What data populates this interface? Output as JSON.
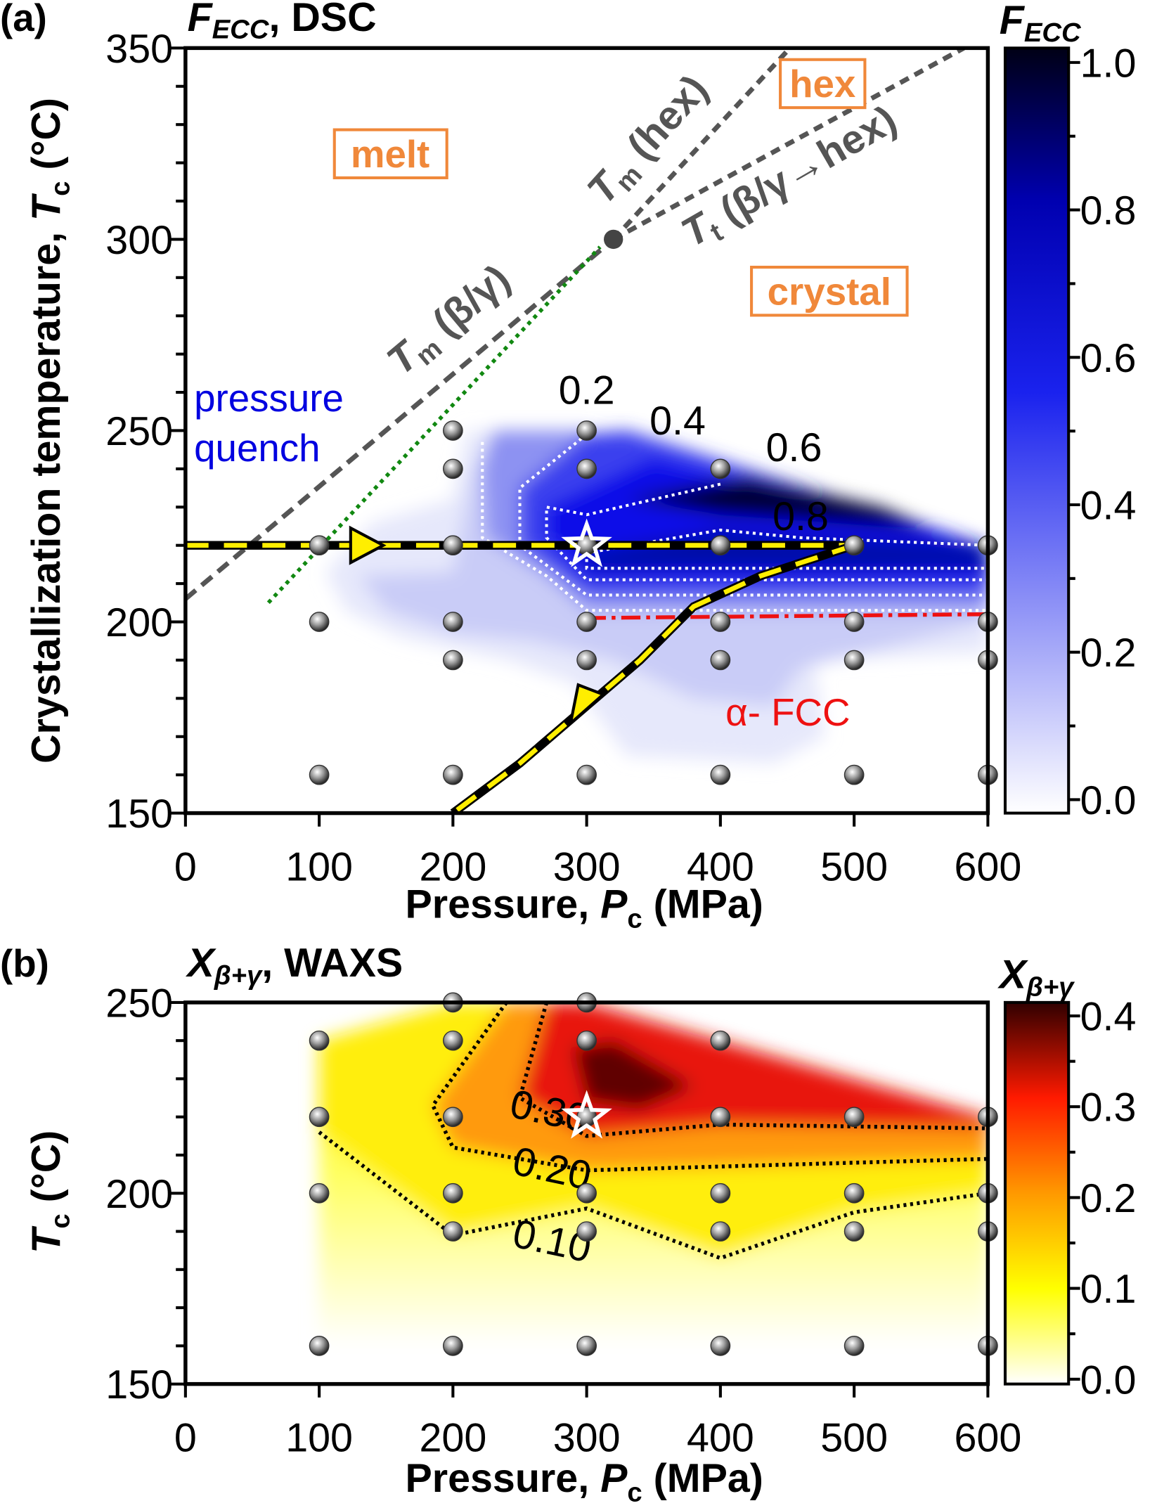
{
  "chart_data": [
    {
      "panel": "(a)",
      "type": "heatmap",
      "title": {
        "main": "F",
        "sub": "ECC",
        "rest": ", DSC"
      },
      "xlabel": {
        "main": "Pressure, ",
        "ital": "P",
        "sub": "c",
        "rest": " (MPa)"
      },
      "ylabel": {
        "main": "Crystallization temperature, ",
        "ital": "T",
        "sub": "c",
        "rest": " (°C)"
      },
      "xlim": [
        0,
        600
      ],
      "ylim": [
        150,
        350
      ],
      "xticks": [
        "0",
        "100",
        "200",
        "300",
        "400",
        "500",
        "600"
      ],
      "yticks": [
        "150",
        "200",
        "250",
        "300",
        "350"
      ],
      "colorbar": {
        "title_main": "F",
        "title_sub": "ECC",
        "range": [
          0,
          1
        ],
        "ticks": [
          "0.0",
          "0.2",
          "0.4",
          "0.6",
          "0.8",
          "1.0"
        ],
        "colors": [
          "#ffffff",
          "#0000ee",
          "#000020"
        ]
      },
      "points": [
        [
          100,
          220
        ],
        [
          100,
          200
        ],
        [
          100,
          160
        ],
        [
          200,
          250
        ],
        [
          200,
          240
        ],
        [
          200,
          220
        ],
        [
          200,
          200
        ],
        [
          200,
          190
        ],
        [
          200,
          160
        ],
        [
          300,
          250
        ],
        [
          300,
          240
        ],
        [
          300,
          220
        ],
        [
          300,
          200
        ],
        [
          300,
          190
        ],
        [
          300,
          160
        ],
        [
          400,
          240
        ],
        [
          400,
          220
        ],
        [
          400,
          200
        ],
        [
          400,
          190
        ],
        [
          400,
          160
        ],
        [
          500,
          220
        ],
        [
          500,
          200
        ],
        [
          500,
          190
        ],
        [
          500,
          160
        ],
        [
          600,
          220
        ],
        [
          600,
          200
        ],
        [
          600,
          190
        ],
        [
          600,
          160
        ]
      ],
      "star": [
        300,
        220
      ],
      "filled_levels": [
        {
          "level": 0.05,
          "color": "#e6e8fb",
          "poly": [
            [
              105,
              213
            ],
            [
              140,
              226
            ],
            [
              200,
              232
            ],
            [
              210,
              250
            ],
            [
              300,
              250
            ],
            [
              600,
              220
            ],
            [
              600,
              192
            ],
            [
              470,
              190
            ],
            [
              478,
              170
            ],
            [
              440,
              163
            ],
            [
              330,
              165
            ],
            [
              290,
              184
            ],
            [
              240,
              190
            ],
            [
              160,
              196
            ],
            [
              120,
              203
            ]
          ]
        },
        {
          "level": 0.12,
          "color": "#c9ccf7",
          "poly": [
            [
              130,
              212
            ],
            [
              200,
              213
            ],
            [
              215,
              240
            ],
            [
              230,
              250
            ],
            [
              300,
              250
            ],
            [
              600,
              220
            ],
            [
              600,
              200
            ],
            [
              460,
              188
            ],
            [
              440,
              178
            ],
            [
              380,
              180
            ],
            [
              320,
              190
            ],
            [
              260,
              195
            ],
            [
              200,
              197
            ],
            [
              150,
              203
            ]
          ]
        },
        {
          "level": 0.2,
          "color": "#8d92f2",
          "poly": [
            [
              222,
              240
            ],
            [
              230,
              250
            ],
            [
              300,
              250
            ],
            [
              600,
              220
            ],
            [
              600,
              203
            ],
            [
              300,
              203
            ],
            [
              270,
              212
            ],
            [
              225,
              222
            ]
          ]
        },
        {
          "level": 0.4,
          "color": "#3a40ee",
          "poly": [
            [
              250,
              235
            ],
            [
              300,
              249
            ],
            [
              330,
              250
            ],
            [
              600,
              220
            ],
            [
              600,
              207
            ],
            [
              300,
              207
            ],
            [
              250,
              220
            ]
          ]
        },
        {
          "level": 0.6,
          "color": "#0a10e8",
          "poly": [
            [
              270,
              230
            ],
            [
              350,
              243
            ],
            [
              600,
              220
            ],
            [
              600,
              211
            ],
            [
              300,
              211
            ],
            [
              270,
              222
            ]
          ]
        },
        {
          "level": 0.8,
          "color": "#0508a8",
          "poly": [
            [
              300,
              218
            ],
            [
              400,
              224
            ],
            [
              460,
              222
            ],
            [
              600,
              220
            ],
            [
              600,
              214
            ],
            [
              300,
              214
            ]
          ]
        },
        {
          "level": 0.9,
          "color": "#03063a",
          "poly": [
            [
              330,
              232
            ],
            [
              420,
              238
            ],
            [
              520,
              230
            ],
            [
              560,
              224
            ],
            [
              480,
              226
            ],
            [
              400,
              228
            ]
          ]
        }
      ],
      "contours": [
        {
          "label": "0.2",
          "line": [
            [
              222,
              247
            ],
            [
              222,
              222
            ],
            [
              270,
              212
            ],
            [
              300,
              203
            ],
            [
              600,
              203
            ]
          ],
          "label_at": [
            300,
            257
          ],
          "label_color": "#000"
        },
        {
          "label": "0.4",
          "line": [
            [
              300,
              249
            ],
            [
              250,
              235
            ],
            [
              250,
              220
            ],
            [
              300,
              207
            ],
            [
              600,
              207
            ]
          ],
          "label_at": [
            368,
            249
          ],
          "label_color": "#000"
        },
        {
          "label": "0.6",
          "line": [
            [
              400,
              236
            ],
            [
              300,
              228
            ],
            [
              270,
              230
            ],
            [
              270,
              222
            ],
            [
              300,
              211
            ],
            [
              600,
              211
            ]
          ],
          "label_at": [
            455,
            242
          ],
          "label_color": "#000"
        },
        {
          "label": "0.8",
          "line": [
            [
              300,
              218
            ],
            [
              400,
              224
            ],
            [
              460,
              222
            ],
            [
              600,
              220
            ],
            [
              600,
              214
            ],
            [
              300,
              214
            ],
            [
              300,
              218
            ]
          ],
          "label_at": [
            460,
            224
          ],
          "label_color": "#fff"
        }
      ],
      "lines": {
        "tm_beta_gamma": [
          [
            0,
            206
          ],
          [
            320,
            300
          ]
        ],
        "tm_hex": [
          [
            320,
            300
          ],
          [
            452,
            350
          ]
        ],
        "tt": [
          [
            320,
            300
          ],
          [
            582,
            350
          ]
        ],
        "green": [
          [
            62,
            205
          ],
          [
            310,
            298
          ]
        ],
        "red": [
          [
            300,
            201
          ],
          [
            600,
            202
          ]
        ],
        "path_h": [
          [
            0,
            220
          ],
          [
            500,
            220
          ]
        ],
        "path_c": [
          [
            500,
            220
          ],
          [
            430,
            212
          ],
          [
            380,
            204
          ],
          [
            340,
            190
          ],
          [
            300,
            178
          ],
          [
            250,
            163
          ],
          [
            200,
            150
          ]
        ],
        "triple": [
          320,
          300
        ]
      },
      "annotations": {
        "tm_bg": {
          "ital": "T",
          "sub": "m",
          "rest": " (β/γ)"
        },
        "tm_hex": {
          "ital": "T",
          "sub": "m",
          "rest": " (hex)"
        },
        "tt": {
          "ital": "T",
          "sub": "t",
          "rest": " (β/γ→hex)"
        },
        "melt": "melt",
        "hex": "hex",
        "crystal": "crystal",
        "pq1": "pressure",
        "pq2": "quench",
        "afcc": "α- FCC"
      },
      "colors": {
        "accent_orange": "#f0883a",
        "blue": "#0000e0",
        "red": "#ee1111",
        "green": "#118811",
        "yellow": "#ffee00"
      }
    },
    {
      "panel": "(b)",
      "type": "heatmap",
      "title": {
        "main": "X",
        "sub": "β+γ",
        "rest": ", WAXS"
      },
      "xlabel": {
        "main": "Pressure, ",
        "ital": "P",
        "sub": "c",
        "rest": " (MPa)"
      },
      "ylabel": {
        "ital": "T",
        "sub": "c",
        "rest": " (°C)"
      },
      "xlim": [
        0,
        600
      ],
      "ylim": [
        150,
        250
      ],
      "xticks": [
        "0",
        "100",
        "200",
        "300",
        "400",
        "500",
        "600"
      ],
      "yticks": [
        "150",
        "200",
        "250"
      ],
      "colorbar": {
        "title_main": "X",
        "title_sub": "β+γ",
        "range": [
          0,
          0.4
        ],
        "ticks": [
          "0.0",
          "0.1",
          "0.2",
          "0.3",
          "0.4"
        ],
        "colors": [
          "#ffffff",
          "#ffff00",
          "#ff9900",
          "#ff1a00",
          "#3a0000"
        ]
      },
      "points": [
        [
          100,
          240
        ],
        [
          100,
          220
        ],
        [
          100,
          200
        ],
        [
          100,
          160
        ],
        [
          200,
          250
        ],
        [
          200,
          240
        ],
        [
          200,
          220
        ],
        [
          200,
          200
        ],
        [
          200,
          190
        ],
        [
          200,
          160
        ],
        [
          300,
          250
        ],
        [
          300,
          240
        ],
        [
          300,
          220
        ],
        [
          300,
          200
        ],
        [
          300,
          190
        ],
        [
          300,
          160
        ],
        [
          400,
          240
        ],
        [
          400,
          220
        ],
        [
          400,
          200
        ],
        [
          400,
          190
        ],
        [
          400,
          160
        ],
        [
          500,
          220
        ],
        [
          500,
          200
        ],
        [
          500,
          190
        ],
        [
          500,
          160
        ],
        [
          600,
          220
        ],
        [
          600,
          200
        ],
        [
          600,
          190
        ],
        [
          600,
          160
        ]
      ],
      "star": [
        300,
        220
      ],
      "filled_levels": [
        {
          "level": 0.1,
          "color": "#ffee10",
          "poly": [
            [
              100,
              240
            ],
            [
              200,
              250
            ],
            [
              300,
              250
            ],
            [
              600,
              220
            ],
            [
              600,
              200
            ],
            [
              500,
              195
            ],
            [
              400,
              183
            ],
            [
              300,
              196
            ],
            [
              200,
              189
            ],
            [
              100,
              216
            ]
          ]
        },
        {
          "level": 0.2,
          "color": "#ff9a10",
          "poly": [
            [
              240,
              250
            ],
            [
              300,
              250
            ],
            [
              600,
              220
            ],
            [
              600,
              209
            ],
            [
              300,
              206
            ],
            [
              200,
              212
            ],
            [
              185,
              223
            ]
          ]
        },
        {
          "level": 0.3,
          "color": "#e81408",
          "poly": [
            [
              270,
              250
            ],
            [
              300,
              250
            ],
            [
              600,
              220
            ],
            [
              600,
              217
            ],
            [
              400,
              218
            ],
            [
              300,
              215
            ],
            [
              250,
              225
            ]
          ]
        },
        {
          "level": 0.38,
          "color": "#600000",
          "poly": [
            [
              290,
              238
            ],
            [
              320,
              240
            ],
            [
              380,
              228
            ],
            [
              340,
              222
            ],
            [
              300,
              224
            ]
          ]
        }
      ],
      "contours": [
        {
          "label": "0.10",
          "line": [
            [
              100,
              216
            ],
            [
              200,
              189
            ],
            [
              300,
              196
            ],
            [
              400,
              183
            ],
            [
              500,
              195
            ],
            [
              600,
              200
            ]
          ],
          "label_at": [
            272,
            184
          ]
        },
        {
          "label": "0.20",
          "line": [
            [
              240,
              250
            ],
            [
              185,
              223
            ],
            [
              200,
              212
            ],
            [
              300,
              206
            ],
            [
              600,
              209
            ]
          ],
          "label_at": [
            272,
            203
          ]
        },
        {
          "label": "0.30",
          "line": [
            [
              270,
              250
            ],
            [
              250,
              225
            ],
            [
              300,
              215
            ],
            [
              400,
              218
            ],
            [
              600,
              217
            ]
          ],
          "label_at": [
            270,
            218
          ]
        }
      ]
    }
  ]
}
